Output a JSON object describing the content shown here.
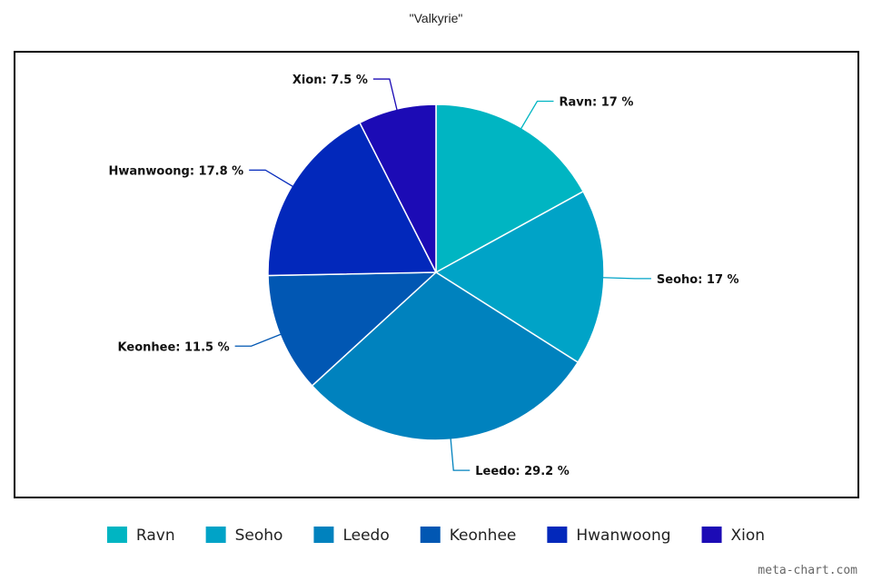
{
  "chart_data": {
    "type": "pie",
    "title": "\"Valkyrie\"",
    "categories": [
      "Ravn",
      "Seoho",
      "Leedo",
      "Keonhee",
      "Hwanwoong",
      "Xion"
    ],
    "values": [
      17,
      17,
      29.2,
      11.5,
      17.8,
      7.5
    ],
    "value_unit": "%",
    "colors": [
      "#00b5c2",
      "#00a3c7",
      "#0082be",
      "#0157b3",
      "#0228bb",
      "#1c0bb5"
    ],
    "data_labels": [
      "Ravn: 17 %",
      "Seoho: 17 %",
      "Leedo: 29.2 %",
      "Keonhee: 11.5 %",
      "Hwanwoong: 17.8 %",
      "Xion: 7.5 %"
    ],
    "legend": [
      "Ravn",
      "Seoho",
      "Leedo",
      "Keonhee",
      "Hwanwoong",
      "Xion"
    ],
    "legend_position": "bottom",
    "start_angle": "top",
    "direction": "clockwise"
  },
  "watermark": "meta-chart.com"
}
